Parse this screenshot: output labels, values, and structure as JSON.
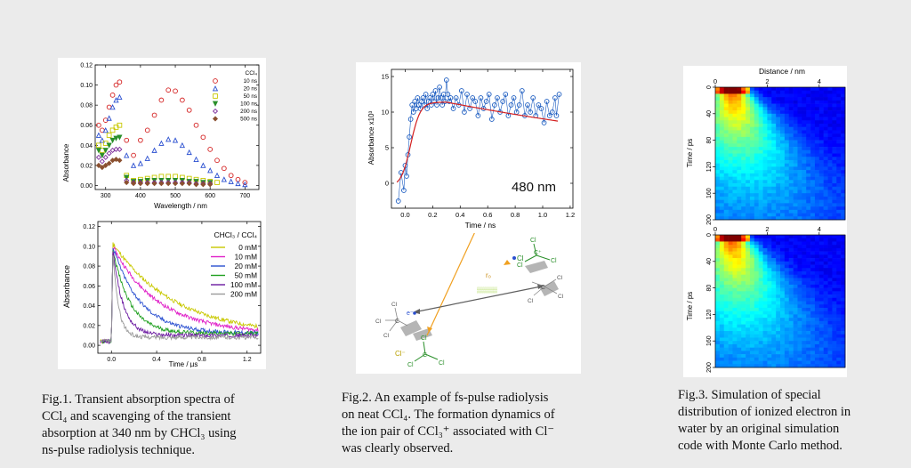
{
  "captions": {
    "fig1": "Fig.1. Transient absorption spectra of\nCCl₄ and scavenging of the transient\nabsorption at 340 nm by CHCl₃ using\nns-pulse radiolysis technique.",
    "fig2": "Fig.2. An example of fs-pulse radiolysis\non neat CCl₄. The formation dynamics of\nthe ion pair of CCl₃⁺ associated with Cl⁻\nwas clearly observed.",
    "fig3": "Fig.3. Simulation of special\ndistribution of ionized electron in\nwater by an original simulation\ncode with Monte Carlo method."
  },
  "fig2_label": "480 nm",
  "diagram_labels": {
    "cl_atom": "Cl",
    "cl_ion": "Cl⁻",
    "electron": "e⁻",
    "carbon": "C",
    "carbon_cation": "C⁺",
    "distance": "r₀"
  },
  "chart_data": [
    {
      "id": "fig1-top",
      "type": "scatter",
      "xlabel": "Wavelength / nm",
      "ylabel": "Absorbance",
      "xlim": [
        270,
        740
      ],
      "ylim": [
        -0.004,
        0.12
      ],
      "xticks": [
        300,
        400,
        500,
        600,
        700
      ],
      "yticks": [
        0.0,
        0.02,
        0.04,
        0.06,
        0.08,
        0.1,
        0.12
      ],
      "ytick_labels": [
        "0.00",
        "0.02",
        "0.04",
        "0.06",
        "0.08",
        "0.10",
        "0.12"
      ],
      "legend_title": "CCl₄",
      "legend_position": "top-right",
      "series": [
        {
          "name": "10 ns",
          "marker": "circle",
          "color": "#d42020",
          "x": [
            280,
            290,
            300,
            310,
            320,
            330,
            340,
            360,
            380,
            400,
            420,
            440,
            460,
            480,
            500,
            520,
            540,
            560,
            580,
            600,
            620,
            640,
            660,
            680,
            700
          ],
          "y": [
            0.06,
            0.055,
            0.065,
            0.078,
            0.09,
            0.1,
            0.103,
            0.045,
            0.03,
            0.045,
            0.055,
            0.07,
            0.085,
            0.095,
            0.094,
            0.085,
            0.075,
            0.06,
            0.048,
            0.036,
            0.025,
            0.017,
            0.01,
            0.006,
            0.003
          ]
        },
        {
          "name": "20 ns",
          "marker": "triangle",
          "color": "#2a4fd0",
          "x": [
            280,
            290,
            300,
            310,
            320,
            330,
            340,
            360,
            380,
            400,
            420,
            440,
            460,
            480,
            500,
            520,
            540,
            560,
            580,
            600,
            620,
            640,
            660,
            680,
            700
          ],
          "y": [
            0.05,
            0.045,
            0.055,
            0.067,
            0.078,
            0.085,
            0.088,
            0.03,
            0.02,
            0.022,
            0.027,
            0.035,
            0.042,
            0.046,
            0.045,
            0.04,
            0.033,
            0.026,
            0.02,
            0.015,
            0.01,
            0.006,
            0.004,
            0.002,
            0.001
          ]
        },
        {
          "name": "50 ns",
          "marker": "square",
          "color": "#c8c800",
          "x": [
            280,
            290,
            300,
            310,
            320,
            330,
            340,
            360,
            380,
            400,
            420,
            440,
            460,
            480,
            500,
            520,
            540,
            560,
            580,
            600,
            620
          ],
          "y": [
            0.04,
            0.035,
            0.042,
            0.05,
            0.055,
            0.058,
            0.06,
            0.01,
            0.005,
            0.006,
            0.007,
            0.008,
            0.009,
            0.009,
            0.009,
            0.008,
            0.007,
            0.006,
            0.005,
            0.004,
            0.003
          ]
        },
        {
          "name": "100 ns",
          "marker": "triangle-down",
          "color": "#2a8f2a",
          "x": [
            280,
            290,
            300,
            310,
            320,
            330,
            340,
            360,
            380,
            400,
            420,
            440,
            460,
            480,
            500,
            520,
            540,
            560,
            580,
            600
          ],
          "y": [
            0.035,
            0.03,
            0.035,
            0.04,
            0.045,
            0.047,
            0.048,
            0.008,
            0.004,
            0.004,
            0.005,
            0.005,
            0.005,
            0.005,
            0.005,
            0.005,
            0.004,
            0.004,
            0.003,
            0.003
          ]
        },
        {
          "name": "200 ns",
          "marker": "diamond",
          "color": "#7a2a9a",
          "x": [
            280,
            290,
            300,
            310,
            320,
            330,
            340,
            360,
            380,
            400,
            420,
            440,
            460,
            480,
            500,
            520,
            540,
            560,
            580,
            600
          ],
          "y": [
            0.028,
            0.024,
            0.028,
            0.032,
            0.035,
            0.036,
            0.036,
            0.005,
            0.003,
            0.003,
            0.003,
            0.003,
            0.003,
            0.003,
            0.003,
            0.003,
            0.003,
            0.002,
            0.002,
            0.002
          ]
        },
        {
          "name": "500 ns",
          "marker": "filled-diamond",
          "color": "#8a5030",
          "x": [
            280,
            290,
            300,
            310,
            320,
            330,
            340,
            360,
            380,
            400,
            420,
            440,
            460,
            480,
            500,
            520,
            540,
            560,
            580,
            600
          ],
          "y": [
            0.02,
            0.018,
            0.02,
            0.022,
            0.025,
            0.026,
            0.025,
            0.003,
            0.002,
            0.002,
            0.002,
            0.002,
            0.002,
            0.002,
            0.002,
            0.002,
            0.002,
            0.001,
            0.001,
            0.001
          ]
        }
      ]
    },
    {
      "id": "fig1-bottom",
      "type": "line",
      "xlabel": "Time / µs",
      "ylabel": "Absorbance",
      "xlim": [
        -0.12,
        1.32
      ],
      "ylim": [
        -0.008,
        0.125
      ],
      "xticks": [
        0.0,
        0.4,
        0.8,
        1.2
      ],
      "xtick_labels": [
        "0.0",
        "0.4",
        "0.8",
        "1.2"
      ],
      "yticks": [
        0.0,
        0.02,
        0.04,
        0.06,
        0.08,
        0.1,
        0.12
      ],
      "ytick_labels": [
        "0.00",
        "0.02",
        "0.04",
        "0.06",
        "0.08",
        "0.10",
        "0.12"
      ],
      "legend_title": "CHCl₃ / CCl₄",
      "legend_position": "top-right",
      "series": [
        {
          "name": "0 mM",
          "color": "#c8c800",
          "peak": 0.103,
          "tau": 0.55,
          "base": 0.01
        },
        {
          "name": "10 mM",
          "color": "#e020c8",
          "peak": 0.1,
          "tau": 0.4,
          "base": 0.012
        },
        {
          "name": "20 mM",
          "color": "#2a4fd0",
          "peak": 0.1,
          "tau": 0.24,
          "base": 0.012
        },
        {
          "name": "50 mM",
          "color": "#20a020",
          "peak": 0.098,
          "tau": 0.15,
          "base": 0.012
        },
        {
          "name": "100 mM",
          "color": "#6a18a0",
          "peak": 0.098,
          "tau": 0.09,
          "base": 0.01
        },
        {
          "name": "200 mM",
          "color": "#9a9a9a",
          "peak": 0.096,
          "tau": 0.05,
          "base": 0.008
        }
      ]
    },
    {
      "id": "fig2",
      "type": "scatter",
      "xlabel": "Time / ns",
      "ylabel": "Absorbance x10³",
      "xlim": [
        -0.1,
        1.22
      ],
      "ylim": [
        -3.5,
        16
      ],
      "xticks": [
        0.0,
        0.2,
        0.4,
        0.6,
        0.8,
        1.0,
        1.2
      ],
      "xtick_labels": [
        "0.0",
        "0.2",
        "0.4",
        "0.6",
        "0.8",
        "1.0",
        "1.2"
      ],
      "yticks": [
        0,
        5,
        10,
        15
      ],
      "series": [
        {
          "name": "",
          "marker": "open-circle",
          "color": "#1a5bc0",
          "connected": true,
          "x": [
            -0.05,
            -0.03,
            -0.01,
            0.0,
            0.01,
            0.02,
            0.03,
            0.04,
            0.05,
            0.06,
            0.07,
            0.08,
            0.09,
            0.1,
            0.11,
            0.12,
            0.13,
            0.14,
            0.15,
            0.16,
            0.17,
            0.18,
            0.19,
            0.2,
            0.21,
            0.22,
            0.23,
            0.24,
            0.25,
            0.26,
            0.27,
            0.28,
            0.29,
            0.3,
            0.31,
            0.32,
            0.33,
            0.35,
            0.37,
            0.39,
            0.41,
            0.43,
            0.45,
            0.47,
            0.49,
            0.51,
            0.53,
            0.55,
            0.57,
            0.59,
            0.61,
            0.63,
            0.65,
            0.67,
            0.69,
            0.71,
            0.73,
            0.75,
            0.77,
            0.79,
            0.81,
            0.83,
            0.85,
            0.87,
            0.89,
            0.91,
            0.93,
            0.95,
            0.97,
            0.99,
            1.01,
            1.03,
            1.05,
            1.07,
            1.09,
            1.1,
            1.12
          ],
          "y": [
            -2.5,
            1.5,
            -1.0,
            2.5,
            1.0,
            4.0,
            6.5,
            9.0,
            11.0,
            10.0,
            11.5,
            10.5,
            12.0,
            11.0,
            10.5,
            11.5,
            12.0,
            11.0,
            12.5,
            10.5,
            11.5,
            12.0,
            11.0,
            12.5,
            11.5,
            13.0,
            11.0,
            12.0,
            13.5,
            12.0,
            11.0,
            12.5,
            11.5,
            14.5,
            12.5,
            11.5,
            12.0,
            10.5,
            12.0,
            11.0,
            13.0,
            10.0,
            12.5,
            10.5,
            12.0,
            11.5,
            9.5,
            12.0,
            10.5,
            11.5,
            12.5,
            9.0,
            11.0,
            12.0,
            10.0,
            11.5,
            12.5,
            9.5,
            11.0,
            12.0,
            10.0,
            11.0,
            13.0,
            9.5,
            11.0,
            10.0,
            12.0,
            9.5,
            11.0,
            10.5,
            8.5,
            11.5,
            9.5,
            10.0,
            12.0,
            9.5,
            12.5
          ]
        },
        {
          "name": "",
          "marker": "line",
          "color": "#d42020",
          "fit": {
            "rise": 0.035,
            "t0": 0.04,
            "amp": 11.9,
            "decay": 3.2
          }
        }
      ]
    },
    {
      "id": "fig3-top",
      "type": "heatmap",
      "title": "Distance / nm",
      "ylabel": "Time / ps",
      "xlim": [
        0,
        5
      ],
      "ylim": [
        0,
        200
      ],
      "xticks": [
        0,
        2,
        4
      ],
      "yticks": [
        0,
        40,
        80,
        120,
        160,
        200
      ],
      "colormap": "jet"
    },
    {
      "id": "fig3-bottom",
      "type": "heatmap",
      "ylabel": "Time / ps",
      "xlim": [
        0,
        5
      ],
      "ylim": [
        0,
        200
      ],
      "xticks": [
        0,
        2,
        4
      ],
      "yticks": [
        0,
        40,
        80,
        120,
        160,
        200
      ],
      "colormap": "jet"
    }
  ]
}
